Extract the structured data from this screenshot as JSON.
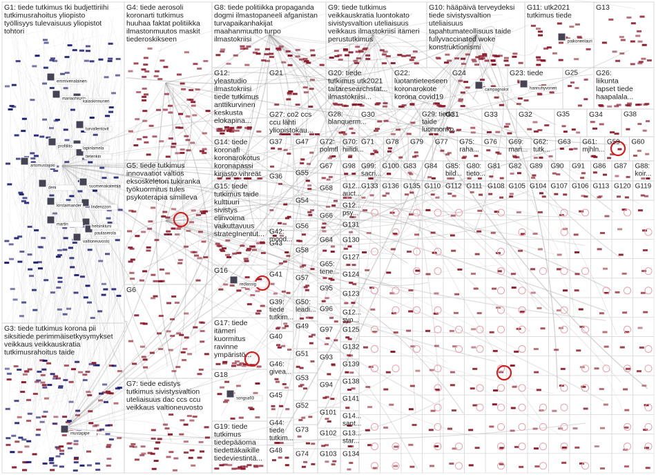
{
  "groups": [
    {
      "lines": [
        "G1: tiede tutkimus tki budjettiriihi",
        "tutkimusrahoitus yliopisto",
        "työllisyys tulevaisuus yliopistot",
        "tohtori"
      ]
    },
    {
      "lines": [
        "G3: tiede tutkimus korona pii",
        "siksitiede perimmäisetkysymykset",
        "veikkaus veikkauskratia",
        "tutkimusrahoitus taide"
      ]
    },
    {
      "lines": [
        "G4: tiede aerosoli",
        "koronarti tutkimus",
        "huuhaa faktat politiikka",
        "ilmastonmuutos maskit",
        "tiederoskikseen"
      ]
    },
    {
      "lines": [
        "G5: tiede tutkimus",
        "innovaatiot valtios",
        "eksoskeleton tukiranka",
        "työkuormitus tules",
        "psykoterapia similleva"
      ]
    },
    {
      "lines": [
        "G6"
      ]
    },
    {
      "lines": [
        "G7: tiede edistys",
        "tutkimus sivistysvaltion",
        "uteliaisuus dac ccs ccu",
        "veikkaus valtioneuvosto"
      ]
    },
    {
      "lines": [
        "G8: tiede politiikka propaganda",
        "dogmi ilmastopaneeli afganistan",
        "turvapaikanhakijat",
        "maahanmuutto turpo",
        "ilmastokriisi"
      ]
    },
    {
      "lines": [
        "G9: tiede tutkimus",
        "veikkauskratia luontokato",
        "sivistysvaltion uteliaisuus",
        "veikkaus ilmastokriisi itämeri",
        "perustutkimus"
      ]
    },
    {
      "lines": [
        "G10: hääpäivä terveydeksi",
        "tiede sivistysvaltion",
        "uteliaisuus",
        "tapahtumateollisuus taide",
        "fullyvaccinated woke",
        "konstruktionismi"
      ]
    },
    {
      "lines": [
        "G11: utk2021",
        "tutkimus tiede"
      ]
    },
    {
      "lines": [
        "G13"
      ]
    },
    {
      "lines": [
        "G12:",
        "yleastudio",
        "ilmastokriisi",
        "tiede tutkimus",
        "anttikurvinen",
        "keskusta",
        "elokapina..."
      ]
    },
    {
      "lines": [
        "G21"
      ]
    },
    {
      "lines": [
        "G20: tiede",
        "tutkimus utk2021",
        "taitaresearchstat...",
        "ilmastokriisi..."
      ]
    },
    {
      "lines": [
        "G22:",
        "luotantieteeseen",
        "koronarokote",
        "korona covid19"
      ]
    },
    {
      "lines": [
        "G24"
      ]
    },
    {
      "lines": [
        "G23: tiede"
      ]
    },
    {
      "lines": [
        "G25"
      ]
    },
    {
      "lines": [
        "G26:",
        "liikunta",
        "lapset tiede",
        "haapalala..."
      ]
    },
    {
      "lines": [
        "G27: co2 ccs",
        "ccu lähti",
        "yliopistokau..."
      ]
    },
    {
      "lines": [
        "G28:",
        "blanquerm..."
      ]
    },
    {
      "lines": [
        "G30"
      ]
    },
    {
      "lines": [
        "G29: tiede",
        "taide",
        "luonnonko..."
      ]
    },
    {
      "lines": [
        "G31"
      ]
    },
    {
      "lines": [
        "G33"
      ]
    },
    {
      "lines": [
        "G32"
      ]
    },
    {
      "lines": [
        "G35"
      ]
    },
    {
      "lines": [
        "G34"
      ]
    },
    {
      "lines": [
        "G38"
      ]
    },
    {
      "lines": [
        "G14: tiede",
        "koronafi",
        "koronarokotus",
        "koronapassi",
        "kirjasto vihreät"
      ]
    },
    {
      "lines": [
        "G15: tiede",
        "tutkimus taide",
        "kulttuuri",
        "sivistys",
        "elinvoima",
        "vaikuttavuus",
        "strategInentut..."
      ]
    },
    {
      "lines": [
        "G16"
      ]
    },
    {
      "lines": [
        "G17: tiede",
        "itämeri",
        "kuormitus",
        "ravinne",
        "ympäristö..."
      ]
    },
    {
      "lines": [
        "G18"
      ]
    },
    {
      "lines": [
        "G19: tiede",
        "tutkimus",
        "tiedepääoma",
        "tiedettäkaikille",
        "tiedeviestintä..."
      ]
    },
    {
      "lines": [
        "G37"
      ]
    },
    {
      "lines": [
        "G36"
      ]
    },
    {
      "lines": [
        "G42:",
        "mood..."
      ]
    },
    {
      "lines": [
        "G43"
      ]
    },
    {
      "lines": [
        "G41"
      ]
    },
    {
      "lines": [
        "G39:",
        "tiede",
        "tutkim..."
      ]
    },
    {
      "lines": [
        "G40"
      ]
    },
    {
      "lines": [
        "G46:",
        "givea..."
      ]
    },
    {
      "lines": [
        "G45"
      ]
    },
    {
      "lines": [
        "G44:",
        "tiede",
        "tutkim..."
      ]
    },
    {
      "lines": [
        "G48"
      ]
    },
    {
      "lines": [
        "G47"
      ]
    },
    {
      "lines": [
        "G55"
      ]
    },
    {
      "lines": [
        "G54"
      ]
    },
    {
      "lines": [
        "G56"
      ]
    },
    {
      "lines": [
        "G58"
      ]
    },
    {
      "lines": [
        "G57"
      ]
    },
    {
      "lines": [
        "G50:",
        "leadi..."
      ]
    },
    {
      "lines": [
        "G49"
      ]
    },
    {
      "lines": [
        "G51"
      ]
    },
    {
      "lines": [
        "G53"
      ]
    },
    {
      "lines": [
        "G52"
      ]
    },
    {
      "lines": [
        "G73"
      ]
    },
    {
      "lines": [
        "G74"
      ]
    },
    {
      "lines": [
        "G72:",
        "polmtl"
      ]
    },
    {
      "lines": [
        "G67"
      ]
    },
    {
      "lines": [
        "G68"
      ]
    },
    {
      "lines": [
        "G66"
      ]
    },
    {
      "lines": [
        "G64"
      ]
    },
    {
      "lines": [
        "G65:",
        "tene..."
      ]
    },
    {
      "lines": [
        "G95"
      ]
    },
    {
      "lines": [
        "G96"
      ]
    },
    {
      "lines": [
        "G97"
      ]
    },
    {
      "lines": [
        "G93"
      ]
    },
    {
      "lines": [
        "G94"
      ]
    },
    {
      "lines": [
        "G101"
      ]
    },
    {
      "lines": [
        "G102"
      ]
    },
    {
      "lines": [
        "G103"
      ]
    },
    {
      "lines": [
        "G70:",
        "hiilidi..."
      ]
    },
    {
      "lines": [
        "G98"
      ]
    },
    {
      "lines": [
        "G12...",
        "auct..."
      ]
    },
    {
      "lines": [
        "G12...",
        "psy..."
      ]
    },
    {
      "lines": [
        "G131"
      ]
    },
    {
      "lines": [
        "G130"
      ]
    },
    {
      "lines": [
        "G127"
      ]
    },
    {
      "lines": [
        "G124"
      ]
    },
    {
      "lines": [
        "G123"
      ]
    },
    {
      "lines": [
        "G12...",
        "syo..."
      ]
    },
    {
      "lines": [
        "G125"
      ]
    },
    {
      "lines": [
        "G132"
      ]
    },
    {
      "lines": [
        "G139"
      ]
    },
    {
      "lines": [
        "G138"
      ]
    },
    {
      "lines": [
        "G141"
      ]
    },
    {
      "lines": [
        "G14...",
        "sant..."
      ]
    },
    {
      "lines": [
        "G13...",
        "star..."
      ]
    },
    {
      "lines": [
        "G134"
      ]
    },
    {
      "lines": [
        "G71"
      ]
    },
    {
      "lines": [
        "G78"
      ]
    },
    {
      "lines": [
        "G79"
      ]
    },
    {
      "lines": [
        "G77"
      ]
    },
    {
      "lines": [
        "G75:",
        "raha..."
      ]
    },
    {
      "lines": [
        "G76"
      ]
    },
    {
      "lines": [
        "G69:",
        "mari..."
      ]
    },
    {
      "lines": [
        "G62:",
        "tutk..."
      ]
    },
    {
      "lines": [
        "G63"
      ]
    },
    {
      "lines": [
        "G61:",
        "mjhln..."
      ]
    },
    {
      "lines": [
        "G59"
      ]
    },
    {
      "lines": [
        "G60"
      ]
    },
    {
      "lines": [
        "G99:",
        "sacri..."
      ]
    },
    {
      "lines": [
        "G100"
      ]
    },
    {
      "lines": [
        "G83"
      ]
    },
    {
      "lines": [
        "G84"
      ]
    },
    {
      "lines": [
        "G85:",
        "bild..."
      ]
    },
    {
      "lines": [
        "G80:",
        "tieto..."
      ]
    },
    {
      "lines": [
        "G81"
      ]
    },
    {
      "lines": [
        "G82"
      ]
    },
    {
      "lines": [
        "G89"
      ]
    },
    {
      "lines": [
        "G90"
      ]
    },
    {
      "lines": [
        "G91"
      ]
    },
    {
      "lines": [
        "G86"
      ]
    },
    {
      "lines": [
        "G87"
      ]
    },
    {
      "lines": [
        "G88:",
        "koir..."
      ]
    },
    {
      "lines": [
        "G133"
      ]
    },
    {
      "lines": [
        "G136"
      ]
    },
    {
      "lines": [
        "G135"
      ]
    },
    {
      "lines": [
        "G110"
      ]
    },
    {
      "lines": [
        "G112"
      ]
    },
    {
      "lines": [
        "G111"
      ]
    },
    {
      "lines": [
        "G108"
      ]
    },
    {
      "lines": [
        "G105"
      ]
    },
    {
      "lines": [
        "G104"
      ]
    },
    {
      "lines": [
        "G107"
      ]
    },
    {
      "lines": [
        "G106"
      ]
    },
    {
      "lines": [
        "G113"
      ]
    },
    {
      "lines": [
        "G120"
      ]
    },
    {
      "lines": [
        "G119"
      ]
    }
  ],
  "node_labels": [
    "emmivenalainen",
    "mariaohisalo",
    "kaiaskinnunen",
    "turvallentovit",
    "profiilito",
    "lapinlamela",
    "tietenkin",
    "artomustajoki",
    "deni",
    "suomenakatemia",
    "kirstaimander",
    "lindenzzon",
    "martin",
    "helsinkiuni",
    "paulaserola",
    "valtioneuvosto",
    "mustapipe",
    "paikonenlauri",
    "hannuhyvonen",
    "campagnolot",
    "redlassig",
    "songsa93"
  ]
}
